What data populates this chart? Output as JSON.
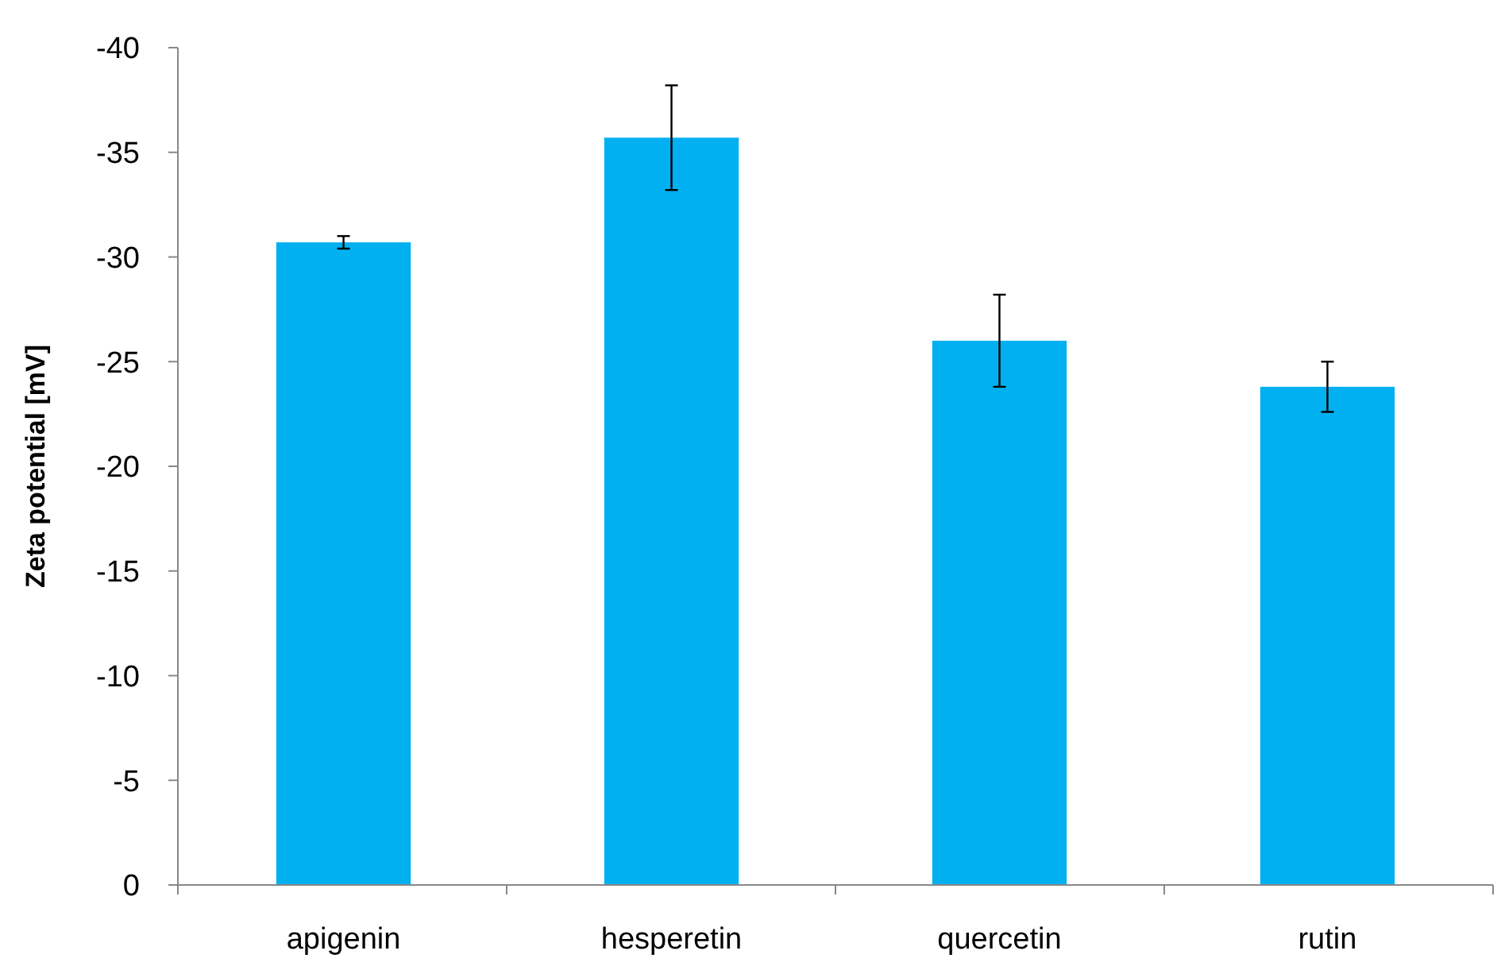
{
  "chart_data": {
    "type": "bar",
    "ylabel": "Zeta potential [mV]",
    "categories": [
      "apigenin",
      "hesperetin",
      "quercetin",
      "rutin"
    ],
    "values": [
      -30.7,
      -35.7,
      -26.0,
      -23.8
    ],
    "errors": [
      0.3,
      2.5,
      2.2,
      1.2
    ],
    "color": "#00b0f0",
    "ylim": [
      0,
      -40
    ],
    "yticks": [
      0,
      -5,
      -10,
      -15,
      -20,
      -25,
      -30,
      -35,
      -40
    ],
    "grid": false
  }
}
